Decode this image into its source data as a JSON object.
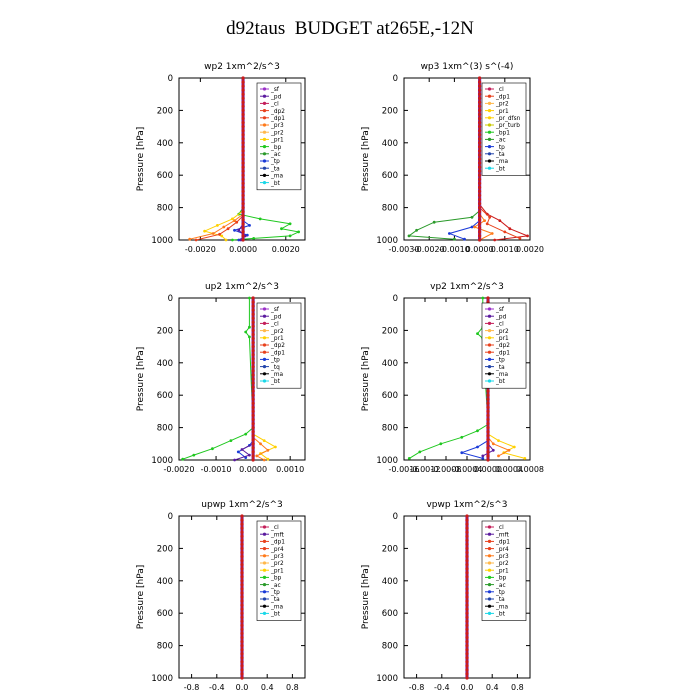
{
  "figure_title": "d92taus  BUDGET at265E,-12N",
  "colors": {
    "sf": "#9b30c8",
    "pd": "#5a1a9e",
    "cl": "#c41f5a",
    "dp": "#e8401c",
    "pr_a": "#ff7a1a",
    "pr_b": "#ffb84a",
    "pr_c": "#ffd000",
    "pr_d": "#c8c800",
    "bp": "#1fc81f",
    "ac": "#2a9a2a",
    "tp": "#1a3ad8",
    "ta": "#2244aa",
    "ma": "#000000",
    "bt": "#1ad8e8",
    "main": "#cc1a1a"
  },
  "chart_data": [
    {
      "type": "line",
      "title": "wp2  1xm^2/s^3",
      "ylabel": "Pressure [hPa]",
      "ylim": [
        1000,
        0
      ],
      "xlim": [
        -0.003,
        0.0029
      ],
      "xticks": [
        "-0.0020",
        "0.0000",
        "0.0020"
      ],
      "xtick_values": [
        -0.002,
        0.0,
        0.002
      ],
      "yticks": [
        "0",
        "200",
        "400",
        "600",
        "800",
        "1000"
      ],
      "legend": [
        "_sf",
        "_pd",
        "_cl",
        "_dp2",
        "_dp1",
        "_pr3",
        "_pr2",
        "_pr1",
        "_bp",
        "_ac",
        "_tp",
        "_ta",
        "_ma",
        "_bt"
      ],
      "series": [
        {
          "name": "_bp",
          "points": [
            [
              0.0,
              0
            ],
            [
              0.0,
              800
            ],
            [
              -0.0002,
              840
            ],
            [
              0.0008,
              870
            ],
            [
              0.0022,
              900
            ],
            [
              0.0018,
              930
            ],
            [
              0.0026,
              950
            ],
            [
              0.0022,
              975
            ],
            [
              0.0005,
              990
            ],
            [
              -0.0005,
              1000
            ]
          ]
        },
        {
          "name": "_pr1",
          "points": [
            [
              0.0,
              0
            ],
            [
              0.0,
              820
            ],
            [
              -0.0005,
              870
            ],
            [
              -0.0012,
              910
            ],
            [
              -0.0018,
              945
            ],
            [
              -0.001,
              975
            ],
            [
              -0.0008,
              1000
            ]
          ]
        },
        {
          "name": "_pr2",
          "points": [
            [
              0.0,
              0
            ],
            [
              0.0,
              840
            ],
            [
              -0.0004,
              880
            ],
            [
              -0.0009,
              920
            ],
            [
              -0.0014,
              960
            ],
            [
              -0.0025,
              995
            ]
          ]
        },
        {
          "name": "_dp1",
          "points": [
            [
              0.0,
              0
            ],
            [
              0.0,
              850
            ],
            [
              -0.0003,
              890
            ],
            [
              -0.0007,
              930
            ],
            [
              -0.0011,
              965
            ],
            [
              -0.0022,
              1000
            ]
          ]
        },
        {
          "name": "_tp",
          "points": [
            [
              0.0,
              0
            ],
            [
              0.0,
              880
            ],
            [
              0.0003,
              910
            ],
            [
              -0.0004,
              940
            ],
            [
              0.0002,
              970
            ],
            [
              -0.0002,
              1000
            ]
          ]
        },
        {
          "name": "_pd",
          "points": [
            [
              0.0,
              0
            ],
            [
              0.0,
              900
            ],
            [
              -0.0002,
              940
            ],
            [
              0.0001,
              975
            ],
            [
              -0.0001,
              1000
            ]
          ]
        }
      ]
    },
    {
      "type": "line",
      "title": "wp3  1xm^(3) s^(-4)",
      "ylabel": "Pressure [hPa]",
      "ylim": [
        1000,
        0
      ],
      "xlim": [
        -0.003,
        0.002
      ],
      "xticks": [
        "-0.0030",
        "-0.0020",
        "-0.0010",
        "0.0000",
        "0.0010",
        "0.0020"
      ],
      "xtick_values": [
        -0.003,
        -0.002,
        -0.001,
        0.0,
        0.001,
        0.002
      ],
      "yticks": [
        "0",
        "200",
        "400",
        "600",
        "800",
        "1000"
      ],
      "legend": [
        "_cl",
        "_dp1",
        "_pr2",
        "_pr1",
        "_pr_dfsn",
        "_pr_turb",
        "_bp1",
        "_ac",
        "_tp",
        "_ta",
        "_ma",
        "_bt"
      ],
      "series": [
        {
          "name": "_bp1",
          "points": [
            [
              0.0,
              0
            ],
            [
              0.0,
              820
            ],
            [
              -0.0003,
              860
            ],
            [
              -0.0018,
              890
            ],
            [
              -0.0025,
              940
            ],
            [
              -0.0028,
              975
            ],
            [
              -0.001,
              995
            ]
          ]
        },
        {
          "name": "_pr1",
          "points": [
            [
              0.0,
              0
            ],
            [
              0.0,
              780
            ],
            [
              0.0003,
              840
            ],
            [
              0.0008,
              880
            ],
            [
              0.0012,
              930
            ],
            [
              0.0019,
              975
            ],
            [
              0.0006,
              1000
            ]
          ]
        },
        {
          "name": "_dp1",
          "points": [
            [
              0.0,
              0
            ],
            [
              0.0,
              800
            ],
            [
              0.0004,
              860
            ],
            [
              0.0003,
              900
            ],
            [
              0.001,
              950
            ],
            [
              0.0016,
              990
            ]
          ]
        },
        {
          "name": "_tp",
          "points": [
            [
              0.0,
              0
            ],
            [
              0.0,
              880
            ],
            [
              -0.0003,
              920
            ],
            [
              -0.0012,
              960
            ],
            [
              -0.0006,
              995
            ]
          ]
        },
        {
          "name": "_pr2",
          "points": [
            [
              0.0,
              0
            ],
            [
              0.0,
              840
            ],
            [
              0.0002,
              880
            ],
            [
              -0.0002,
              920
            ],
            [
              0.0005,
              960
            ],
            [
              0.0,
              1000
            ]
          ]
        }
      ]
    },
    {
      "type": "line",
      "title": "up2  1xm^2/s^3",
      "ylabel": "Pressure [hPa]",
      "ylim": [
        1000,
        0
      ],
      "xlim": [
        -0.002,
        0.0014
      ],
      "xticks": [
        "-0.0020",
        "-0.0010",
        "0.0000",
        "0.0010"
      ],
      "xtick_values": [
        -0.002,
        -0.001,
        0.0,
        0.001
      ],
      "yticks": [
        "0",
        "200",
        "400",
        "600",
        "800",
        "1000"
      ],
      "legend": [
        "_sf",
        "_pd",
        "_cl",
        "_pr2",
        "_pr1",
        "_dp2",
        "_dp1",
        "_tp",
        "_tq",
        "_ma",
        "_bt"
      ],
      "series": [
        {
          "name": "_dp1",
          "points": [
            [
              -0.0001,
              0
            ],
            [
              -0.0001,
              180
            ],
            [
              -0.0002,
              210
            ],
            [
              -0.0001,
              240
            ],
            [
              0.0,
              800
            ],
            [
              -0.0002,
              840
            ],
            [
              -0.0006,
              880
            ],
            [
              -0.0011,
              930
            ],
            [
              -0.0016,
              970
            ],
            [
              -0.0019,
              995
            ]
          ]
        },
        {
          "name": "_pr2",
          "points": [
            [
              0.0,
              0
            ],
            [
              0.0,
              840
            ],
            [
              0.0003,
              880
            ],
            [
              0.0006,
              920
            ],
            [
              0.0002,
              960
            ],
            [
              0.0004,
              995
            ]
          ]
        },
        {
          "name": "_pr1",
          "points": [
            [
              0.0,
              0
            ],
            [
              0.0,
              860
            ],
            [
              0.0002,
              900
            ],
            [
              0.0004,
              940
            ],
            [
              0.0001,
              975
            ],
            [
              0.0003,
              1000
            ]
          ]
        },
        {
          "name": "_tp",
          "points": [
            [
              0.0,
              0
            ],
            [
              0.0,
              880
            ],
            [
              -0.0001,
              910
            ],
            [
              -0.0004,
              950
            ],
            [
              -0.0002,
              985
            ]
          ]
        },
        {
          "name": "_dp2",
          "points": [
            [
              0.0,
              0
            ],
            [
              0.0,
              900
            ],
            [
              -0.0003,
              935
            ],
            [
              -0.0001,
              970
            ],
            [
              -0.0005,
              1000
            ]
          ]
        }
      ]
    },
    {
      "type": "line",
      "title": "vp2  1xm^2/s^3",
      "ylabel": "Pressure [hPa]",
      "ylim": [
        1000,
        0
      ],
      "xlim": [
        -0.0016,
        0.0008
      ],
      "xticks": [
        "-0.0016",
        "-0.0012",
        "-0.0008",
        "-0.0004",
        "0.0000",
        "0.0004",
        "0.0008"
      ],
      "xtick_values": [
        -0.0016,
        -0.0012,
        -0.0008,
        -0.0004,
        0.0,
        0.0004,
        0.0008
      ],
      "yticks": [
        "0",
        "200",
        "400",
        "600",
        "800",
        "1000"
      ],
      "legend": [
        "_sf",
        "_pd",
        "_cl",
        "_pr2",
        "_pr1",
        "_dp2",
        "_dp1",
        "_tp",
        "_ta",
        "_ma",
        "_bt"
      ],
      "series": [
        {
          "name": "_dp1",
          "points": [
            [
              -0.0001,
              0
            ],
            [
              -0.0001,
              180
            ],
            [
              -0.0002,
              220
            ],
            [
              -0.0001,
              250
            ],
            [
              0.0,
              780
            ],
            [
              -0.0002,
              820
            ],
            [
              -0.0005,
              860
            ],
            [
              -0.0009,
              900
            ],
            [
              -0.0013,
              950
            ],
            [
              -0.0015,
              990
            ]
          ]
        },
        {
          "name": "_pr2",
          "points": [
            [
              0.0,
              0
            ],
            [
              0.0,
              840
            ],
            [
              0.0002,
              880
            ],
            [
              0.0005,
              920
            ],
            [
              0.0003,
              955
            ],
            [
              0.0007,
              990
            ]
          ]
        },
        {
          "name": "_pr1",
          "points": [
            [
              0.0,
              0
            ],
            [
              0.0,
              860
            ],
            [
              0.0001,
              900
            ],
            [
              0.0004,
              940
            ],
            [
              0.0002,
              975
            ]
          ]
        },
        {
          "name": "_tp",
          "points": [
            [
              0.0,
              0
            ],
            [
              0.0,
              880
            ],
            [
              -0.0002,
              920
            ],
            [
              -0.0005,
              955
            ],
            [
              -0.0001,
              990
            ]
          ]
        },
        {
          "name": "_dp2",
          "points": [
            [
              0.0,
              0
            ],
            [
              0.0,
              900
            ],
            [
              0.0001,
              940
            ],
            [
              -0.0001,
              975
            ]
          ]
        }
      ]
    },
    {
      "type": "line",
      "title": "upwp  1xm^2/s^3",
      "ylabel": "Pressure [hPa]",
      "ylim": [
        1000,
        0
      ],
      "xlim": [
        -1.0,
        1.0
      ],
      "xticks": [
        "-0.8",
        "-0.4",
        "0.0",
        "0.4",
        "0.8"
      ],
      "xtick_values": [
        -0.8,
        -0.4,
        0.0,
        0.4,
        0.8
      ],
      "yticks": [
        "0",
        "200",
        "400",
        "600",
        "800",
        "1000"
      ],
      "legend": [
        "_cl",
        "_mft",
        "_dp1",
        "_pr4",
        "_pr3",
        "_pr2",
        "_pr1",
        "_bp",
        "_ac",
        "_tp",
        "_ta",
        "_ma",
        "_bt"
      ],
      "series": []
    },
    {
      "type": "line",
      "title": "vpwp  1xm^2/s^3",
      "ylabel": "Pressure [hPa]",
      "ylim": [
        1000,
        0
      ],
      "xlim": [
        -1.0,
        1.0
      ],
      "xticks": [
        "-0.8",
        "-0.4",
        "0.0",
        "0.4",
        "0.8"
      ],
      "xtick_values": [
        -0.8,
        -0.4,
        0.0,
        0.4,
        0.8
      ],
      "yticks": [
        "0",
        "200",
        "400",
        "600",
        "800",
        "1000"
      ],
      "legend": [
        "_cl",
        "_mft",
        "_dp1",
        "_pr4",
        "_pr3",
        "_pr2",
        "_pr1",
        "_bp",
        "_ac",
        "_tp",
        "_ta",
        "_ma",
        "_bt"
      ],
      "series": []
    }
  ]
}
